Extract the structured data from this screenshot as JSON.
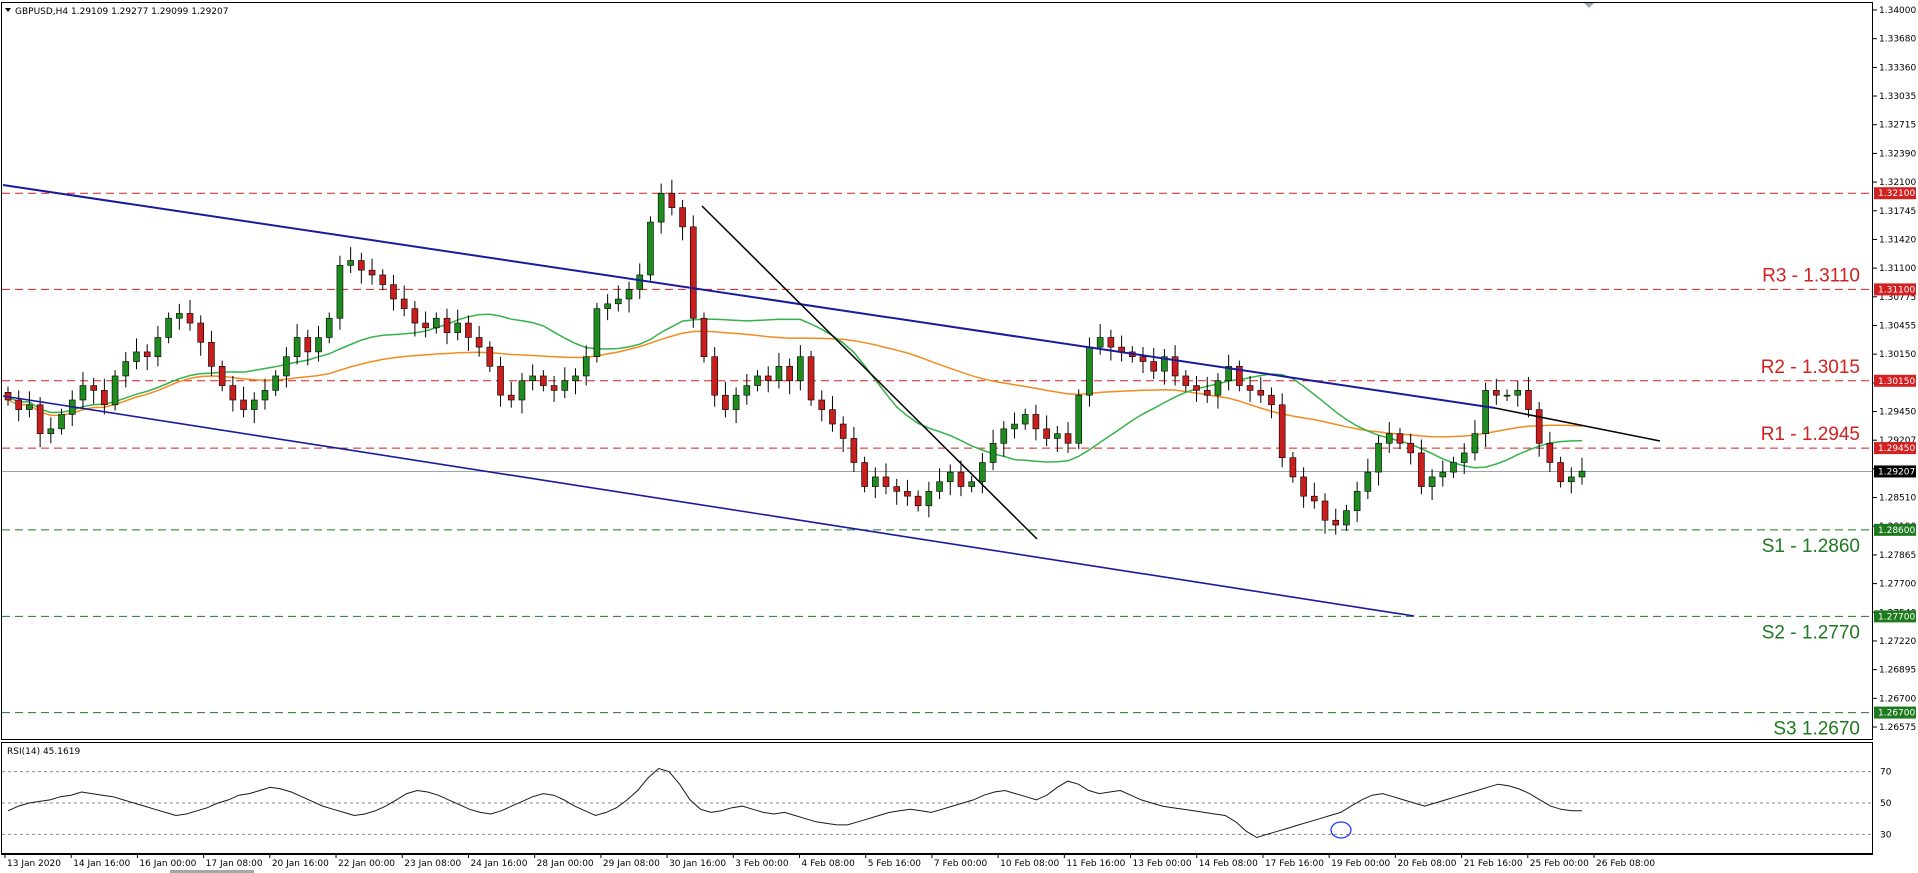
{
  "chart_data": {
    "type": "candlestick",
    "symbol_header": "GBPUSD,H4  1.29109 1.29277 1.29099 1.29207",
    "price_axis": {
      "ylim": [
        1.2655,
        1.34005
      ],
      "tick_labels": [
        "1.34000",
        "1.33680",
        "1.33360",
        "1.33035",
        "1.32715",
        "1.32390",
        "1.32100",
        "1.31745",
        "1.31420",
        "1.31100",
        "1.30775",
        "1.30455",
        "1.30150",
        "1.29805",
        "1.29450",
        "1.29207",
        "1.28835",
        "1.28510",
        "1.28190",
        "1.27865",
        "1.27700",
        "1.27540",
        "1.27220",
        "1.26895",
        "1.26700",
        "1.26575"
      ],
      "current_price": "1.29207"
    },
    "time_axis": {
      "tick_labels": [
        "13 Jan 2020",
        "14 Jan 16:00",
        "16 Jan 00:00",
        "17 Jan 08:00",
        "20 Jan 16:00",
        "22 Jan 00:00",
        "23 Jan 08:00",
        "24 Jan 16:00",
        "28 Jan 00:00",
        "29 Jan 08:00",
        "30 Jan 16:00",
        "3 Feb 00:00",
        "4 Feb 08:00",
        "5 Feb 16:00",
        "7 Feb 00:00",
        "10 Feb 08:00",
        "11 Feb 16:00",
        "13 Feb 00:00",
        "14 Feb 08:00",
        "17 Feb 16:00",
        "19 Feb 00:00",
        "20 Feb 08:00",
        "21 Feb 16:00",
        "25 Feb 00:00",
        "26 Feb 08:00"
      ]
    },
    "levels": [
      {
        "name": "R3",
        "label": "R3 - 1.3110",
        "value": 1.311,
        "tag": "1.31100",
        "color": "#d32020"
      },
      {
        "name": "R2",
        "label": "R2 - 1.3015",
        "value": 1.3015,
        "tag": "1.30150",
        "color": "#d32020"
      },
      {
        "name": "R1",
        "label": "R1 - 1.2945",
        "value": 1.2945,
        "tag": "1.29450",
        "color": "#d32020"
      },
      {
        "name": "S1",
        "label": "S1 - 1.2860",
        "value": 1.286,
        "tag": "1.28600",
        "color": "#1e7a1e"
      },
      {
        "name": "S2",
        "label": "S2 - 1.2770",
        "value": 1.277,
        "tag": "1.27700",
        "color": "#1e7a1e"
      },
      {
        "name": "S3",
        "label": "S3 1.2670",
        "value": 1.267,
        "tag": "1.26700",
        "color": "#1e7a1e"
      }
    ],
    "top_level": {
      "value": 1.321,
      "tag": "1.32100",
      "color": "#d32020"
    },
    "close_series": [
      1.2995,
      1.2985,
      1.299,
      1.296,
      1.2965,
      1.298,
      1.2995,
      1.301,
      1.3005,
      1.299,
      1.302,
      1.3035,
      1.3045,
      1.304,
      1.306,
      1.308,
      1.3085,
      1.3075,
      1.3055,
      1.303,
      1.301,
      1.2995,
      1.2985,
      1.2995,
      1.3005,
      1.302,
      1.304,
      1.306,
      1.3045,
      1.306,
      1.308,
      1.3135,
      1.314,
      1.313,
      1.3125,
      1.3115,
      1.31,
      1.309,
      1.3075,
      1.307,
      1.308,
      1.3065,
      1.3075,
      1.306,
      1.305,
      1.303,
      1.3,
      1.2995,
      1.3015,
      1.302,
      1.301,
      1.3005,
      1.3015,
      1.302,
      1.304,
      1.309,
      1.3095,
      1.31,
      1.311,
      1.3125,
      1.318,
      1.321,
      1.3195,
      1.3175,
      1.308,
      1.304,
      1.3,
      1.2985,
      1.3,
      1.301,
      1.302,
      1.3015,
      1.303,
      1.3015,
      1.304,
      1.2995,
      1.2985,
      1.297,
      1.2955,
      1.293,
      1.2905,
      1.2915,
      1.2905,
      1.29,
      1.2895,
      1.2885,
      1.29,
      1.291,
      1.292,
      1.2905,
      1.291,
      1.293,
      1.295,
      1.2965,
      1.297,
      1.298,
      1.2965,
      1.2955,
      1.296,
      1.295,
      1.3,
      1.305,
      1.306,
      1.305,
      1.3045,
      1.304,
      1.3035,
      1.3025,
      1.304,
      1.302,
      1.301,
      1.3005,
      1.3,
      1.3015,
      1.303,
      1.301,
      1.3005,
      1.3,
      1.299,
      1.2935,
      1.2915,
      1.2895,
      1.289,
      1.287,
      1.2865,
      1.288,
      1.29,
      1.292,
      1.295,
      1.296,
      1.295,
      1.294,
      1.2905,
      1.2915,
      1.292,
      1.293,
      1.294,
      1.296,
      1.3005,
      1.3,
      1.3,
      1.3005,
      1.2985,
      1.295,
      1.293,
      1.291,
      1.2915,
      1.2921
    ],
    "indicator": {
      "name": "RSI(14) 45.1619",
      "ylim": [
        20,
        80
      ],
      "levels": [
        70,
        50,
        30
      ],
      "tick_labels": [
        "70",
        "50",
        "30"
      ],
      "values": [
        45,
        48,
        50,
        51,
        52,
        54,
        55,
        57,
        56,
        55,
        54,
        52,
        50,
        48,
        46,
        44,
        42,
        43,
        45,
        47,
        50,
        52,
        55,
        56,
        58,
        60,
        59,
        57,
        54,
        51,
        48,
        46,
        44,
        42,
        43,
        45,
        48,
        52,
        56,
        58,
        57,
        55,
        52,
        49,
        46,
        44,
        43,
        45,
        48,
        51,
        54,
        56,
        55,
        52,
        48,
        45,
        42,
        44,
        47,
        52,
        58,
        66,
        72,
        70,
        62,
        52,
        46,
        44,
        45,
        47,
        48,
        46,
        44,
        43,
        44,
        42,
        40,
        38,
        37,
        36,
        36,
        38,
        40,
        42,
        44,
        45,
        46,
        45,
        44,
        46,
        48,
        50,
        52,
        55,
        57,
        58,
        56,
        54,
        52,
        55,
        60,
        64,
        62,
        58,
        56,
        57,
        58,
        55,
        52,
        50,
        48,
        47,
        46,
        45,
        44,
        43,
        42,
        38,
        32,
        28,
        30,
        32,
        34,
        36,
        38,
        40,
        42,
        44,
        48,
        52,
        55,
        56,
        54,
        52,
        50,
        48,
        50,
        52,
        54,
        56,
        58,
        60,
        62,
        61,
        59,
        56,
        52,
        48,
        46,
        45,
        45
      ]
    },
    "colors": {
      "bull": "#1e8c1e",
      "bear": "#c81e1e",
      "ma_fast": "#36b24a",
      "ma_slow": "#f28c1e",
      "channel": "#1a1aa0",
      "trendline": "#000000"
    }
  }
}
